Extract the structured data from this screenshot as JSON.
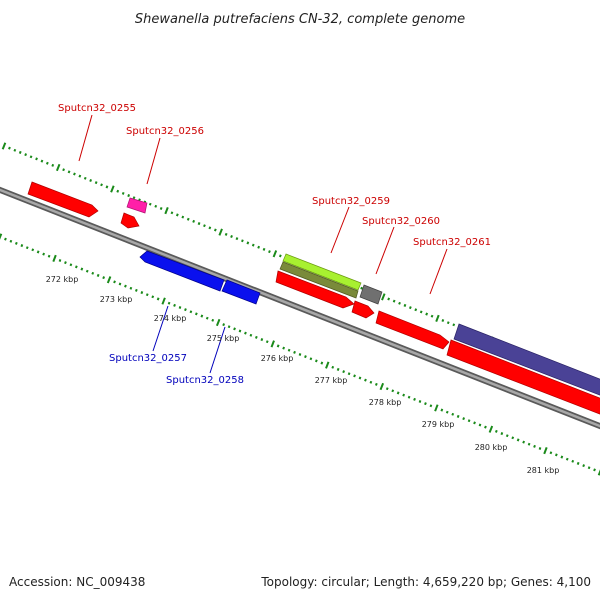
{
  "title": "Shewanella putrefaciens CN-32, complete genome",
  "footer": {
    "accession": "Accession: NC_009438",
    "summary": "Topology: circular; Length: 4,659,220 bp; Genes: 4,100"
  },
  "colors": {
    "backbone": "#8c8c8c",
    "tick": "#1a8a1a",
    "forward_label": "#cc0000",
    "reverse_label": "#0000bb",
    "red_gene": "#ff0000",
    "blue_gene": "#0a10ee",
    "pink_gene": "#ff1fa8",
    "green_gene": "#a8f030",
    "olive_gene": "#7a8a3a",
    "gray_gene": "#707070",
    "purple_gene": "#4a4296"
  },
  "ticks": [
    "272 kbp",
    "273 kbp",
    "274 kbp",
    "275 kbp",
    "276 kbp",
    "277 kbp",
    "278 kbp",
    "279 kbp",
    "280 kbp",
    "281 kbp"
  ],
  "gene_labels": [
    {
      "text": "Sputcn32_0255",
      "strand": "forward"
    },
    {
      "text": "Sputcn32_0256",
      "strand": "forward"
    },
    {
      "text": "Sputcn32_0257",
      "strand": "reverse"
    },
    {
      "text": "Sputcn32_0258",
      "strand": "reverse"
    },
    {
      "text": "Sputcn32_0259",
      "strand": "forward"
    },
    {
      "text": "Sputcn32_0260",
      "strand": "forward"
    },
    {
      "text": "Sputcn32_0261",
      "strand": "forward"
    }
  ]
}
